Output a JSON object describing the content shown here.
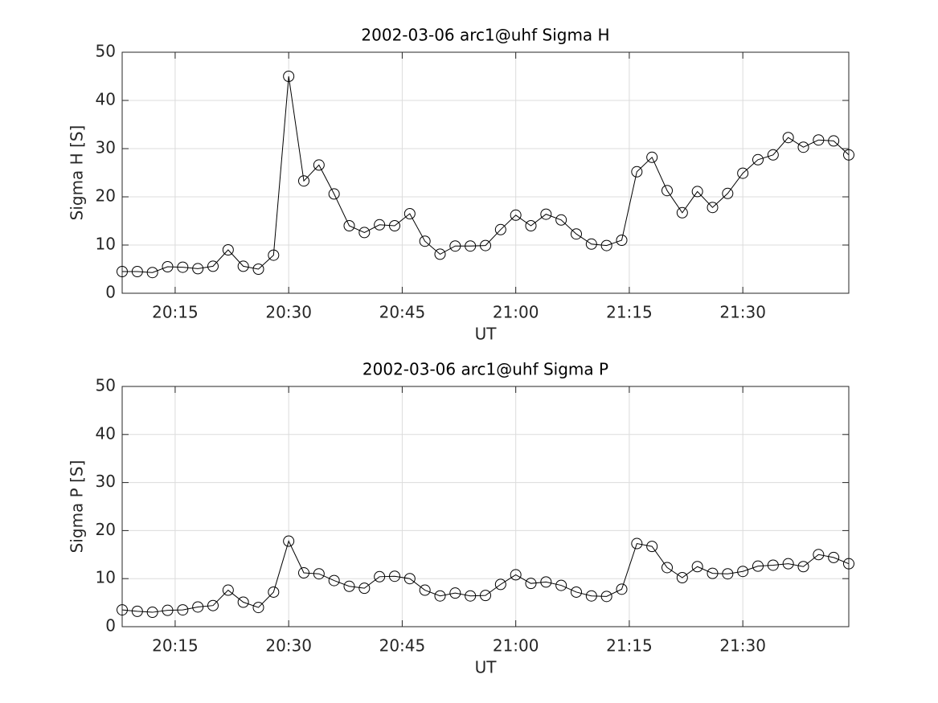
{
  "chart_data": [
    {
      "type": "line",
      "title": "2002-03-06  arc1@uhf Sigma H",
      "xlabel": "UT",
      "ylabel": "Sigma H [S]",
      "x": [
        "20:08",
        "20:10",
        "20:12",
        "20:14",
        "20:16",
        "20:18",
        "20:20",
        "20:22",
        "20:24",
        "20:26",
        "20:28",
        "20:30",
        "20:32",
        "20:34",
        "20:36",
        "20:38",
        "20:40",
        "20:42",
        "20:44",
        "20:46",
        "20:48",
        "20:50",
        "20:52",
        "20:54",
        "20:56",
        "20:58",
        "21:00",
        "21:02",
        "21:04",
        "21:06",
        "21:08",
        "21:10",
        "21:12",
        "21:14",
        "21:16",
        "21:18",
        "21:20",
        "21:22",
        "21:24",
        "21:26",
        "21:28",
        "21:30",
        "21:32",
        "21:34",
        "21:36",
        "21:38",
        "21:40",
        "21:42",
        "21:44"
      ],
      "values": [
        4.5,
        4.5,
        4.3,
        5.5,
        5.4,
        5.1,
        5.6,
        9,
        5.6,
        5,
        7.9,
        45,
        23.3,
        26.6,
        20.6,
        14,
        12.6,
        14.2,
        14,
        16.5,
        10.8,
        8.1,
        9.8,
        9.8,
        9.9,
        13.2,
        16.2,
        14,
        16.4,
        15.2,
        12.3,
        10.2,
        9.9,
        11,
        25.2,
        28.2,
        21.3,
        16.7,
        21.1,
        17.8,
        20.7,
        24.9,
        27.7,
        28.7,
        32.3,
        30.3,
        31.8,
        31.6,
        28.7
      ],
      "color": "#000000",
      "xlim": [
        "20:08",
        "21:44"
      ],
      "xticks": [
        "20:15",
        "20:30",
        "20:45",
        "21:00",
        "21:15",
        "21:30"
      ],
      "ylim": [
        0,
        50
      ],
      "yticks": [
        0,
        10,
        20,
        30,
        40,
        50
      ],
      "grid": true
    },
    {
      "type": "line",
      "title": "2002-03-06  arc1@uhf Sigma P",
      "xlabel": "UT",
      "ylabel": "Sigma P [S]",
      "x": [
        "20:08",
        "20:10",
        "20:12",
        "20:14",
        "20:16",
        "20:18",
        "20:20",
        "20:22",
        "20:24",
        "20:26",
        "20:28",
        "20:30",
        "20:32",
        "20:34",
        "20:36",
        "20:38",
        "20:40",
        "20:42",
        "20:44",
        "20:46",
        "20:48",
        "20:50",
        "20:52",
        "20:54",
        "20:56",
        "20:58",
        "21:00",
        "21:02",
        "21:04",
        "21:06",
        "21:08",
        "21:10",
        "21:12",
        "21:14",
        "21:16",
        "21:18",
        "21:20",
        "21:22",
        "21:24",
        "21:26",
        "21:28",
        "21:30",
        "21:32",
        "21:34",
        "21:36",
        "21:38",
        "21:40",
        "21:42",
        "21:44"
      ],
      "values": [
        3.5,
        3.2,
        3,
        3.4,
        3.5,
        4.1,
        4.4,
        7.6,
        5.1,
        4,
        7.2,
        17.8,
        11.2,
        11,
        9.6,
        8.4,
        8,
        10.4,
        10.5,
        10,
        7.6,
        6.4,
        7,
        6.4,
        6.5,
        8.8,
        10.8,
        9,
        9.3,
        8.6,
        7.2,
        6.4,
        6.3,
        7.8,
        17.3,
        16.7,
        12.3,
        10.2,
        12.5,
        11.1,
        11,
        11.5,
        12.6,
        12.8,
        13.1,
        12.5,
        15,
        14.4,
        13.1
      ],
      "color": "#000000",
      "xlim": [
        "20:08",
        "21:44"
      ],
      "xticks": [
        "20:15",
        "20:30",
        "20:45",
        "21:00",
        "21:15",
        "21:30"
      ],
      "ylim": [
        0,
        50
      ],
      "yticks": [
        0,
        10,
        20,
        30,
        40,
        50
      ],
      "grid": true
    }
  ]
}
